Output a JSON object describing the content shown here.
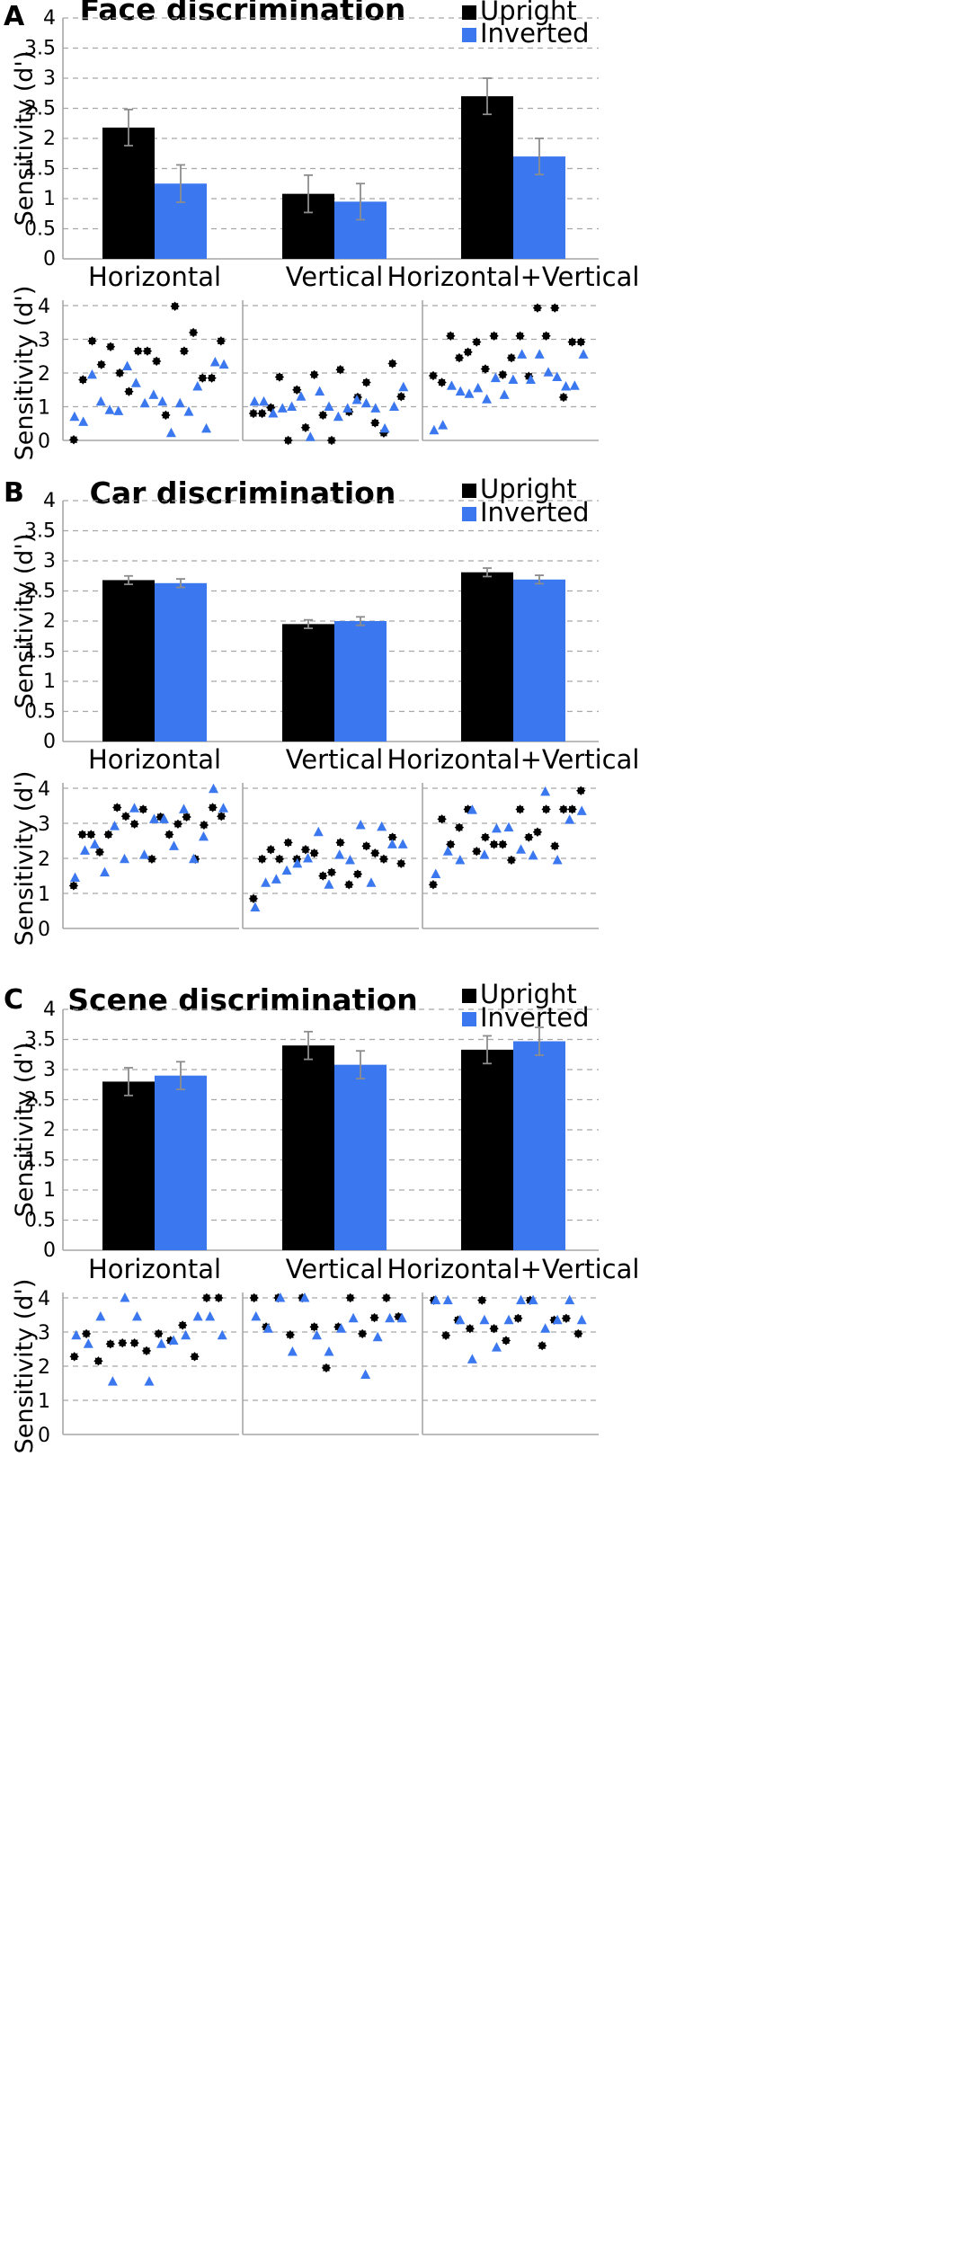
{
  "colors": {
    "upright": "#000000",
    "inverted": "#3b78f0",
    "grid": "#a6a6a6"
  },
  "chart_data": [
    {
      "type": "bar",
      "panel": "A",
      "title": "Face discrimination",
      "ylabel": "Sensitivity (d')",
      "ylim": [
        0,
        4
      ],
      "yticks": [
        "0",
        "0.5",
        "1",
        "1.5",
        "2",
        "2.5",
        "3",
        "3.5",
        "4"
      ],
      "categories": [
        "Horizontal",
        "Vertical",
        "Horizontal+Vertical"
      ],
      "series": [
        {
          "name": "Upright",
          "values": [
            2.18,
            1.08,
            2.7
          ],
          "errors": [
            0.3,
            0.31,
            0.3
          ]
        },
        {
          "name": "Inverted",
          "values": [
            1.25,
            0.95,
            1.7
          ],
          "errors": [
            0.31,
            0.3,
            0.3
          ]
        }
      ],
      "scatter": {
        "type": "scatter",
        "ylabel": "Sensitivity (d')",
        "ylim": [
          0,
          4
        ],
        "yticks": [
          "0",
          "1",
          "2",
          "3",
          "4"
        ],
        "groups": [
          {
            "category": "Horizontal",
            "upright": [
              0.02,
              1.8,
              2.95,
              2.25,
              2.78,
              2.0,
              1.45,
              2.65,
              2.65,
              2.35,
              0.75,
              3.98,
              2.65,
              3.2,
              1.85,
              1.85,
              2.95
            ],
            "inverted": [
              0.7,
              0.55,
              1.95,
              1.15,
              0.9,
              0.87,
              2.2,
              1.7,
              1.1,
              1.35,
              1.15,
              0.22,
              1.1,
              0.85,
              1.6,
              0.35,
              2.32,
              2.25
            ]
          },
          {
            "category": "Vertical",
            "upright": [
              0.8,
              0.8,
              0.97,
              1.88,
              0.0,
              1.5,
              0.38,
              1.95,
              0.75,
              0.0,
              2.1,
              0.85,
              1.28,
              1.72,
              0.52,
              0.22,
              2.28,
              1.3
            ],
            "inverted": [
              1.15,
              1.15,
              0.8,
              0.95,
              1.0,
              1.3,
              0.1,
              1.45,
              1.0,
              0.7,
              0.95,
              1.2,
              1.1,
              0.95,
              0.35,
              1.0,
              1.58
            ]
          },
          {
            "category": "Horizontal+Vertical",
            "upright": [
              1.92,
              1.72,
              3.1,
              2.45,
              2.62,
              2.92,
              2.12,
              3.1,
              1.95,
              2.45,
              3.1,
              1.9,
              3.93,
              3.1,
              3.93,
              1.28,
              2.92,
              2.92
            ],
            "inverted": [
              0.3,
              0.45,
              1.62,
              1.45,
              1.38,
              1.55,
              1.22,
              1.85,
              1.35,
              1.8,
              2.55,
              1.8,
              2.55,
              2.02,
              1.88,
              1.6,
              1.62,
              2.55
            ]
          }
        ]
      }
    },
    {
      "type": "bar",
      "panel": "B",
      "title": "Car discrimination",
      "ylabel": "Sensitivity (d')",
      "ylim": [
        0,
        4
      ],
      "yticks": [
        "0",
        "0.5",
        "1",
        "1.5",
        "2",
        "2.5",
        "3",
        "3.5",
        "4"
      ],
      "categories": [
        "Horizontal",
        "Vertical",
        "Horizontal+Vertical"
      ],
      "series": [
        {
          "name": "Upright",
          "values": [
            2.68,
            1.95,
            2.81
          ],
          "errors": [
            0.07,
            0.07,
            0.07
          ]
        },
        {
          "name": "Inverted",
          "values": [
            2.63,
            2.0,
            2.69
          ],
          "errors": [
            0.07,
            0.07,
            0.07
          ]
        }
      ],
      "scatter": {
        "type": "scatter",
        "ylabel": "Sensitivity (d')",
        "ylim": [
          0,
          4
        ],
        "yticks": [
          "0",
          "1",
          "2",
          "3",
          "4"
        ],
        "groups": [
          {
            "category": "Horizontal",
            "upright": [
              1.22,
              2.68,
              2.68,
              2.18,
              2.68,
              3.45,
              3.2,
              2.98,
              3.4,
              1.98,
              3.18,
              2.68,
              2.98,
              3.18,
              1.98,
              2.95,
              3.45,
              3.2
            ],
            "inverted": [
              1.45,
              2.22,
              2.4,
              1.6,
              2.92,
              1.98,
              3.43,
              2.1,
              3.12,
              3.12,
              2.35,
              3.4,
              1.98,
              2.62,
              3.98,
              3.43
            ]
          },
          {
            "category": "Vertical",
            "upright": [
              0.85,
              1.98,
              2.25,
              1.98,
              2.45,
              1.98,
              2.25,
              2.15,
              1.5,
              1.6,
              2.45,
              1.25,
              1.55,
              2.35,
              2.15,
              1.98,
              2.6,
              1.85
            ],
            "inverted": [
              0.6,
              1.3,
              1.4,
              1.65,
              1.85,
              2.0,
              2.75,
              1.25,
              2.1,
              1.95,
              2.95,
              1.3,
              2.9,
              2.4,
              2.4
            ]
          },
          {
            "category": "Horizontal+Vertical",
            "upright": [
              1.25,
              3.12,
              2.4,
              2.88,
              3.4,
              2.2,
              2.6,
              2.4,
              2.4,
              1.95,
              3.4,
              2.6,
              2.75,
              3.4,
              2.35,
              3.4,
              3.4,
              3.93
            ],
            "inverted": [
              1.55,
              2.2,
              1.95,
              3.38,
              2.1,
              2.85,
              2.88,
              2.25,
              2.08,
              3.9,
              1.95,
              3.1,
              3.35
            ]
          }
        ]
      }
    },
    {
      "type": "bar",
      "panel": "C",
      "title": "Scene discrimination",
      "ylabel": "Sensitivity (d')",
      "ylim": [
        0,
        4
      ],
      "yticks": [
        "0",
        "0.5",
        "1",
        "1.5",
        "2",
        "2.5",
        "3",
        "3.5",
        "4"
      ],
      "categories": [
        "Horizontal",
        "Vertical",
        "Horizontal+Vertical"
      ],
      "series": [
        {
          "name": "Upright",
          "values": [
            2.8,
            3.4,
            3.33
          ],
          "errors": [
            0.23,
            0.23,
            0.23
          ]
        },
        {
          "name": "Inverted",
          "values": [
            2.9,
            3.08,
            3.47
          ],
          "errors": [
            0.23,
            0.23,
            0.23
          ]
        }
      ],
      "scatter": {
        "type": "scatter",
        "ylabel": "Sensitivity (d')",
        "ylim": [
          0,
          4
        ],
        "yticks": [
          "0",
          "1",
          "2",
          "3",
          "4"
        ],
        "groups": [
          {
            "category": "Horizontal",
            "upright": [
              2.28,
              2.95,
              2.15,
              2.65,
              2.68,
              2.68,
              2.45,
              2.95,
              2.75,
              3.2,
              2.28,
              4.0,
              4.0
            ],
            "inverted": [
              2.9,
              2.65,
              3.45,
              1.55,
              4.0,
              3.45,
              1.55,
              2.65,
              2.75,
              2.9,
              3.45,
              3.45,
              2.9
            ]
          },
          {
            "category": "Vertical",
            "upright": [
              4.0,
              3.15,
              4.0,
              2.92,
              4.0,
              3.15,
              1.95,
              3.15,
              4.0,
              2.95,
              3.42,
              4.0,
              3.45
            ],
            "inverted": [
              3.45,
              3.1,
              4.0,
              2.42,
              4.0,
              2.9,
              2.42,
              3.1,
              3.4,
              1.75,
              2.85,
              3.4,
              3.4
            ]
          },
          {
            "category": "Horizontal+Vertical",
            "upright": [
              3.93,
              2.9,
              3.35,
              3.1,
              3.93,
              3.1,
              2.75,
              3.4,
              3.93,
              2.6,
              3.35,
              3.4,
              2.95
            ],
            "inverted": [
              3.93,
              3.93,
              3.35,
              2.2,
              3.35,
              2.55,
              3.35,
              3.93,
              3.93,
              3.1,
              3.35,
              3.93,
              3.35
            ]
          }
        ]
      }
    }
  ]
}
